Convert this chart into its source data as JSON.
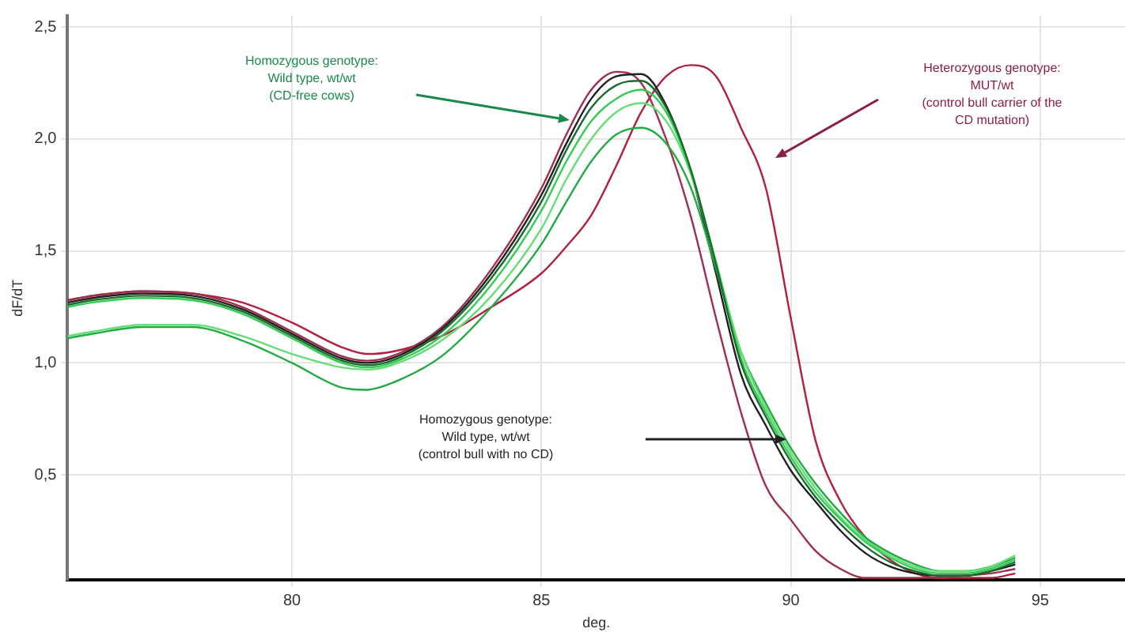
{
  "chart_data": {
    "type": "line",
    "xlabel": "deg.",
    "ylabel": "dF/dT",
    "x": [
      75.5,
      76,
      77,
      78,
      79,
      80,
      81,
      81.5,
      82,
      83,
      84,
      85,
      85.5,
      86,
      86.5,
      87,
      87.5,
      88,
      88.5,
      89,
      89.5,
      90,
      90.5,
      91,
      91.5,
      92,
      92.5,
      93,
      93.5,
      94,
      94.5
    ],
    "series": [
      {
        "color": "#1b6b2f",
        "values": [
          1.26,
          1.28,
          1.3,
          1.29,
          1.23,
          1.12,
          1.01,
          0.99,
          1.01,
          1.14,
          1.38,
          1.72,
          1.95,
          2.14,
          2.24,
          2.26,
          2.14,
          1.86,
          1.44,
          1.0,
          0.76,
          0.56,
          0.4,
          0.28,
          0.18,
          0.11,
          0.07,
          0.05,
          0.05,
          0.07,
          0.11
        ]
      },
      {
        "color": "#33cc55",
        "values": [
          1.25,
          1.27,
          1.29,
          1.28,
          1.22,
          1.11,
          1.0,
          0.98,
          1.0,
          1.12,
          1.35,
          1.68,
          1.9,
          2.08,
          2.18,
          2.22,
          2.12,
          1.85,
          1.45,
          1.02,
          0.78,
          0.58,
          0.42,
          0.3,
          0.2,
          0.13,
          0.08,
          0.06,
          0.06,
          0.08,
          0.12
        ]
      },
      {
        "color": "#66dd77",
        "values": [
          1.12,
          1.14,
          1.17,
          1.17,
          1.12,
          1.04,
          0.98,
          0.97,
          0.99,
          1.1,
          1.3,
          1.6,
          1.82,
          2.0,
          2.12,
          2.16,
          2.08,
          1.84,
          1.45,
          1.05,
          0.8,
          0.6,
          0.44,
          0.31,
          0.21,
          0.14,
          0.09,
          0.07,
          0.07,
          0.09,
          0.14
        ]
      },
      {
        "color": "#22aa44",
        "values": [
          1.11,
          1.13,
          1.16,
          1.16,
          1.1,
          1.0,
          0.89,
          0.88,
          0.91,
          1.03,
          1.25,
          1.53,
          1.72,
          1.9,
          2.02,
          2.05,
          1.98,
          1.78,
          1.42,
          1.05,
          0.82,
          0.62,
          0.46,
          0.33,
          0.22,
          0.15,
          0.1,
          0.07,
          0.07,
          0.09,
          0.13
        ]
      },
      {
        "color": "#202020",
        "values": [
          1.27,
          1.29,
          1.31,
          1.3,
          1.24,
          1.13,
          1.02,
          1.0,
          1.02,
          1.15,
          1.4,
          1.75,
          1.98,
          2.18,
          2.28,
          2.29,
          2.15,
          1.85,
          1.4,
          0.95,
          0.72,
          0.52,
          0.38,
          0.25,
          0.15,
          0.09,
          0.06,
          0.05,
          0.05,
          0.07,
          0.1
        ]
      },
      {
        "color": "#a0304a",
        "values": [
          1.28,
          1.3,
          1.32,
          1.31,
          1.25,
          1.14,
          1.03,
          1.01,
          1.03,
          1.16,
          1.42,
          1.78,
          2.02,
          2.22,
          2.3,
          2.25,
          2.0,
          1.65,
          1.2,
          0.78,
          0.45,
          0.3,
          0.16,
          0.08,
          0.04,
          0.04,
          0.04,
          0.04,
          0.05,
          0.06,
          0.08
        ]
      },
      {
        "color": "#b02040",
        "values": [
          1.28,
          1.3,
          1.32,
          1.31,
          1.27,
          1.18,
          1.07,
          1.04,
          1.05,
          1.12,
          1.25,
          1.4,
          1.52,
          1.66,
          1.88,
          2.12,
          2.28,
          2.33,
          2.28,
          2.05,
          1.78,
          1.2,
          0.65,
          0.38,
          0.22,
          0.12,
          0.06,
          0.04,
          0.04,
          0.04,
          0.06
        ]
      }
    ],
    "xlim": [
      75.5,
      96.7
    ],
    "xticks": [
      80,
      85,
      90,
      95
    ],
    "ylim": [
      0.03,
      2.55
    ],
    "yticks": [
      {
        "value": 0.5,
        "label": "0,5"
      },
      {
        "value": 1,
        "label": "1,0"
      },
      {
        "value": 1.5,
        "label": "1,5"
      },
      {
        "value": 2,
        "label": "2,0"
      },
      {
        "value": 2.5,
        "label": "2,5"
      }
    ],
    "grid": true,
    "marker": "none",
    "line_style": "solid",
    "annotations": [
      "Homozygous genotype:\nWild type, wt/wt\n(CD-free cows)",
      "Heterozygous genotype:\nMUT/wt\n(control bull carrier of the\nCD mutation)",
      "Homozygous genotype:\nWild type, wt/wt\n(control bull with no CD)"
    ]
  }
}
